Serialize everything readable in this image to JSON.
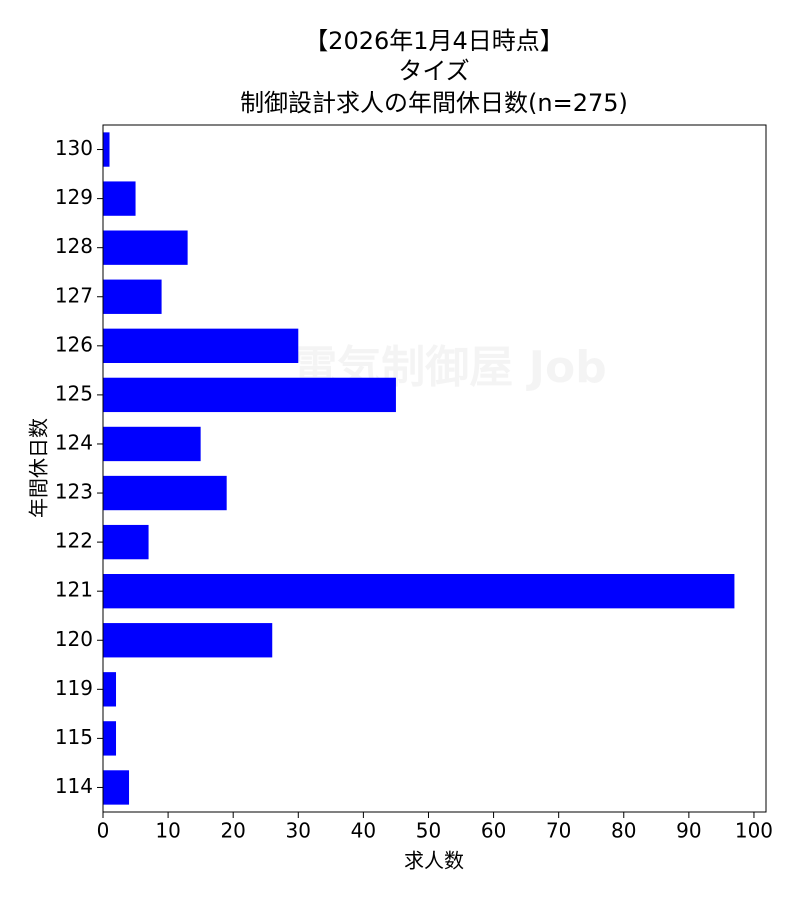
{
  "chart_data": {
    "type": "barh",
    "title": [
      "【2026年1月4日時点】",
      "タイズ",
      "制御設計求人の年間休日数(n=275)"
    ],
    "watermark": "電気制御屋 Job",
    "xlabel": "求人数",
    "ylabel": "年間休日数",
    "categories": [
      "130",
      "129",
      "128",
      "127",
      "126",
      "125",
      "124",
      "123",
      "122",
      "121",
      "120",
      "119",
      "115",
      "114"
    ],
    "values": [
      1,
      5,
      13,
      9,
      30,
      45,
      15,
      19,
      7,
      97,
      26,
      2,
      2,
      4
    ],
    "color": "#0000ff",
    "xlim": [
      0,
      101.85
    ],
    "xticks": [
      0,
      10,
      20,
      30,
      40,
      50,
      60,
      70,
      80,
      90,
      100
    ]
  }
}
